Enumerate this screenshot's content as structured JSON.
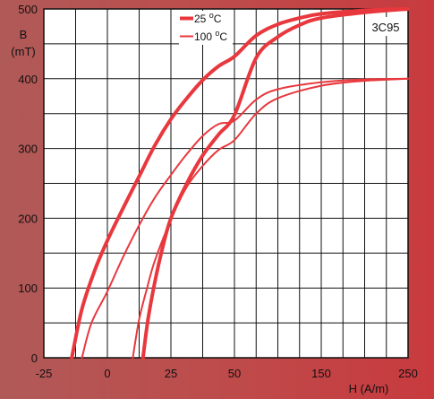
{
  "chart_data": {
    "type": "line",
    "title": "",
    "annotation": "3C95",
    "xlabel": "H  (A/m)",
    "ylabel_line1": "B",
    "ylabel_line2": "(mT)",
    "x_scale": "piecewise",
    "x_segments": [
      {
        "from": -25,
        "to": 50,
        "grid_step": 12.5
      },
      {
        "from": 50,
        "to": 250,
        "grid_step": 25
      }
    ],
    "xlim": [
      -25,
      250
    ],
    "ylim": [
      0,
      500
    ],
    "x_ticks": [
      {
        "value": -25,
        "label": "-25"
      },
      {
        "value": 0,
        "label": "0"
      },
      {
        "value": 25,
        "label": "25"
      },
      {
        "value": 50,
        "label": "50"
      },
      {
        "value": 150,
        "label": "150"
      },
      {
        "value": 250,
        "label": "250"
      }
    ],
    "y_ticks": [
      {
        "value": 0,
        "label": "0"
      },
      {
        "value": 100,
        "label": "100"
      },
      {
        "value": 200,
        "label": "200"
      },
      {
        "value": 300,
        "label": "300"
      },
      {
        "value": 400,
        "label": "400"
      },
      {
        "value": 500,
        "label": "500"
      }
    ],
    "y_grid_step": 50,
    "grid": true,
    "legend_position": "top-center",
    "series": [
      {
        "name": "25 ",
        "name_superscript": "o",
        "name_suffix": "C",
        "color": "#e8383e",
        "line_weight": "thick",
        "branches": [
          {
            "points": [
              [
                -14,
                0
              ],
              [
                -10,
                70
              ],
              [
                -5,
                125
              ],
              [
                0,
                168
              ],
              [
                6.25,
                215
              ],
              [
                12.5,
                260
              ],
              [
                18.75,
                305
              ],
              [
                25,
                342
              ],
              [
                31.25,
                372
              ],
              [
                37.5,
                398
              ],
              [
                43.75,
                418
              ],
              [
                50,
                432
              ],
              [
                75,
                462
              ],
              [
                100,
                478
              ],
              [
                125,
                487
              ],
              [
                150,
                493
              ],
              [
                200,
                498
              ],
              [
                250,
                500
              ]
            ]
          },
          {
            "points": [
              [
                14,
                0
              ],
              [
                16,
                55
              ],
              [
                18.75,
                110
              ],
              [
                21.875,
                160
              ],
              [
                25,
                200
              ],
              [
                31.25,
                250
              ],
              [
                37.5,
                290
              ],
              [
                43.75,
                320
              ],
              [
                50,
                348
              ],
              [
                75,
                430
              ],
              [
                100,
                460
              ],
              [
                125,
                477
              ],
              [
                150,
                487
              ],
              [
                200,
                495
              ],
              [
                250,
                500
              ]
            ]
          }
        ]
      },
      {
        "name": "100 ",
        "name_superscript": "o",
        "name_suffix": "C",
        "color": "#e8383e",
        "line_weight": "thin",
        "branches": [
          {
            "points": [
              [
                -10,
                0
              ],
              [
                -6.25,
                50
              ],
              [
                0,
                95
              ],
              [
                6.25,
                145
              ],
              [
                12.5,
                190
              ],
              [
                18.75,
                230
              ],
              [
                25,
                262
              ],
              [
                31.25,
                292
              ],
              [
                37.5,
                318
              ],
              [
                43.75,
                335
              ],
              [
                50,
                340
              ],
              [
                75,
                370
              ],
              [
                100,
                385
              ],
              [
                150,
                395
              ],
              [
                200,
                399
              ],
              [
                250,
                400
              ]
            ]
          },
          {
            "points": [
              [
                10,
                0
              ],
              [
                12.5,
                55
              ],
              [
                15.625,
                100
              ],
              [
                18.75,
                140
              ],
              [
                25,
                198
              ],
              [
                31.25,
                245
              ],
              [
                37.5,
                275
              ],
              [
                43.75,
                298
              ],
              [
                50,
                312
              ],
              [
                75,
                350
              ],
              [
                100,
                372
              ],
              [
                150,
                390
              ],
              [
                200,
                397
              ],
              [
                250,
                400
              ]
            ]
          }
        ]
      }
    ]
  }
}
